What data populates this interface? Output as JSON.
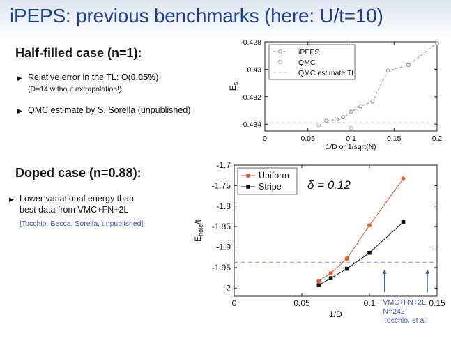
{
  "slide": {
    "title": "iPEPS: previous benchmarks (here: U/t=10)"
  },
  "half_filled": {
    "heading": "Half-filled case (n=1):",
    "bullet1_prefix": "Relative error in the TL: O(",
    "bullet1_value": "0.05%",
    "bullet1_suffix": ")",
    "bullet1_note": "(D=14 without extrapolation!)",
    "bullet2": "QMC estimate by S. Sorella (unpublished)"
  },
  "doped": {
    "heading": "Doped case (n=0.88):",
    "bullet1_line1": "Lower variational energy than",
    "bullet1_line2": "best data from VMC+FN+2L",
    "citation": "[Tocchio, Becca, Sorella, unpublished]"
  },
  "colors": {
    "title": "#1e3f8f",
    "uniform": "#e8542a",
    "stripe": "#111111",
    "reference_line": "#8a8aee",
    "annotation": "#3a56b8"
  },
  "chart_data": [
    {
      "type": "line",
      "xlabel": "1/D or 1/sqrt(N)",
      "ylabel": "E",
      "ylabel_sub": "s",
      "xlim": [
        0,
        0.2
      ],
      "ylim": [
        -0.4345,
        -0.428
      ],
      "xticks": [
        "0",
        "0.05",
        "0.1",
        "0.15",
        "0.2"
      ],
      "xtick_values": [
        0,
        0.05,
        0.1,
        0.15,
        0.2
      ],
      "yticks": [
        "-0.428",
        "-0.43",
        "-0.432",
        "-0.434"
      ],
      "ytick_values": [
        -0.428,
        -0.43,
        -0.432,
        -0.434
      ],
      "legend_position": "top-left",
      "series": [
        {
          "name": "iPEPS",
          "x": [
            0.0714,
            0.0833,
            0.0909,
            0.1,
            0.1111,
            0.125,
            0.1429,
            0.1667,
            0.2
          ],
          "y": [
            -0.43375,
            -0.43365,
            -0.4335,
            -0.4331,
            -0.4327,
            -0.43235,
            -0.4301,
            -0.4297,
            -0.4281
          ],
          "style": "dashed-circle"
        },
        {
          "name": "QMC",
          "x": [
            0.0625,
            0.1
          ],
          "y": [
            -0.43405,
            -0.4343
          ],
          "style": "open-circle"
        },
        {
          "name": "QMC estimate TL",
          "y_value": -0.4339,
          "style": "dashed-horizontal"
        }
      ]
    },
    {
      "type": "line",
      "xlabel": "1/D",
      "ylabel": "E",
      "ylabel_sub": "hole",
      "ylabel_suffix": "/t",
      "xlim": [
        0,
        0.15
      ],
      "ylim": [
        -2.02,
        -1.7
      ],
      "xticks": [
        "0",
        "0.05",
        "0.1",
        "0.15"
      ],
      "xtick_values": [
        0,
        0.05,
        0.1,
        0.15
      ],
      "yticks": [
        "-1.7",
        "-1.75",
        "-1.8",
        "-1.85",
        "-1.9",
        "-1.95",
        "-2"
      ],
      "ytick_values": [
        -1.7,
        -1.75,
        -1.8,
        -1.85,
        -1.9,
        -1.95,
        -2
      ],
      "legend_position": "top-left",
      "annotation_delta": "δ = 0.12",
      "series": [
        {
          "name": "Uniform",
          "x": [
            0.0625,
            0.0714,
            0.0833,
            0.1,
            0.125
          ],
          "y": [
            -1.983,
            -1.964,
            -1.928,
            -1.847,
            -1.733
          ],
          "color": "#e8542a",
          "marker": "circle"
        },
        {
          "name": "Stripe",
          "x": [
            0.0625,
            0.0714,
            0.0833,
            0.1,
            0.125
          ],
          "y": [
            -1.993,
            -1.976,
            -1.953,
            -1.914,
            -1.839
          ],
          "color": "#111111",
          "marker": "square"
        },
        {
          "name": "VMC+FN+2L reference",
          "y_value": -1.937,
          "style": "dashed-horizontal"
        }
      ],
      "reference_annotation": {
        "line1": "VMC+FN+2L,",
        "line2": "N=242",
        "line3": "Tocchio, et al.",
        "arrow_x": [
          0.1111,
          0.1429
        ]
      }
    }
  ]
}
